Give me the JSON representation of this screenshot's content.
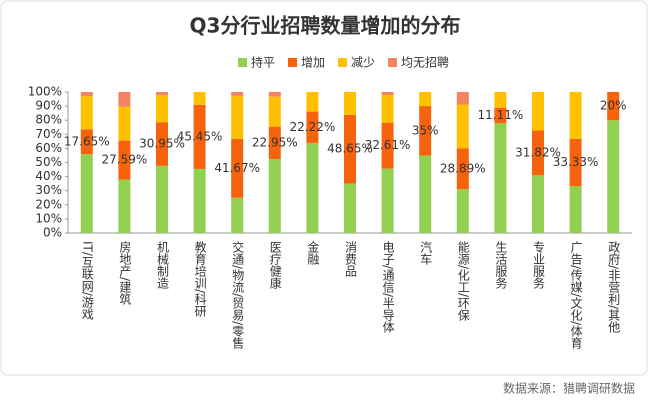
{
  "chart_data": {
    "type": "stacked_bar_100",
    "title": "Q3分行业招聘数量增加的分布",
    "source": "数据来源：猎聘调研数据",
    "categories": [
      "IT/互联网/游戏",
      "房地产/建筑",
      "机械制造",
      "教育培训/科研",
      "交通/物流/贸易/零售",
      "医疗健康",
      "金融",
      "消费品",
      "电子/通信/半导体",
      "汽车",
      "能源/化工/环保",
      "生活服务",
      "专业服务",
      "广告/传媒/文化/体育",
      "政府/非营利/其他"
    ],
    "series": [
      {
        "name": "持平",
        "color": "#92d050",
        "values": [
          55.88,
          37.93,
          47.62,
          45.45,
          25,
          52.46,
          63.89,
          35.14,
          45.65,
          55,
          31.11,
          77.78,
          40.91,
          33.33,
          80
        ]
      },
      {
        "name": "增加",
        "color": "#f7630c",
        "values": [
          17.65,
          27.59,
          30.95,
          45.45,
          41.67,
          22.95,
          22.22,
          48.65,
          32.61,
          35,
          28.89,
          11.11,
          31.82,
          33.33,
          20
        ],
        "value_labels": [
          "17.65%",
          "27.59%",
          "30.95%",
          "45.45%",
          "41.67%",
          "22.95%",
          "22.22%",
          "48.65%",
          "32.61%",
          "35%",
          "28.89%",
          "11.11%",
          "31.82%",
          "33.33%",
          "20%"
        ]
      },
      {
        "name": "减少",
        "color": "#ffc000",
        "values": [
          23.53,
          24.14,
          19.05,
          9.09,
          30.56,
          21.31,
          13.89,
          16.22,
          19.57,
          10,
          31.11,
          11.11,
          27.27,
          33.33,
          0
        ]
      },
      {
        "name": "均无招聘",
        "color": "#f4845f",
        "values": [
          2.94,
          10.34,
          2.38,
          0,
          2.78,
          3.28,
          0,
          0,
          2.17,
          0,
          8.89,
          0,
          0,
          0,
          0
        ]
      }
    ],
    "ylim": [
      0,
      100
    ],
    "yticks": [
      {
        "value": 0,
        "label": "0%"
      },
      {
        "value": 10,
        "label": "10%"
      },
      {
        "value": 20,
        "label": "20%"
      },
      {
        "value": 30,
        "label": "30%"
      },
      {
        "value": 40,
        "label": "40%"
      },
      {
        "value": 50,
        "label": "50%"
      },
      {
        "value": 60,
        "label": "60%"
      },
      {
        "value": 70,
        "label": "70%"
      },
      {
        "value": 80,
        "label": "80%"
      },
      {
        "value": 90,
        "label": "90%"
      },
      {
        "value": 100,
        "label": "100%"
      }
    ],
    "grid": false
  }
}
